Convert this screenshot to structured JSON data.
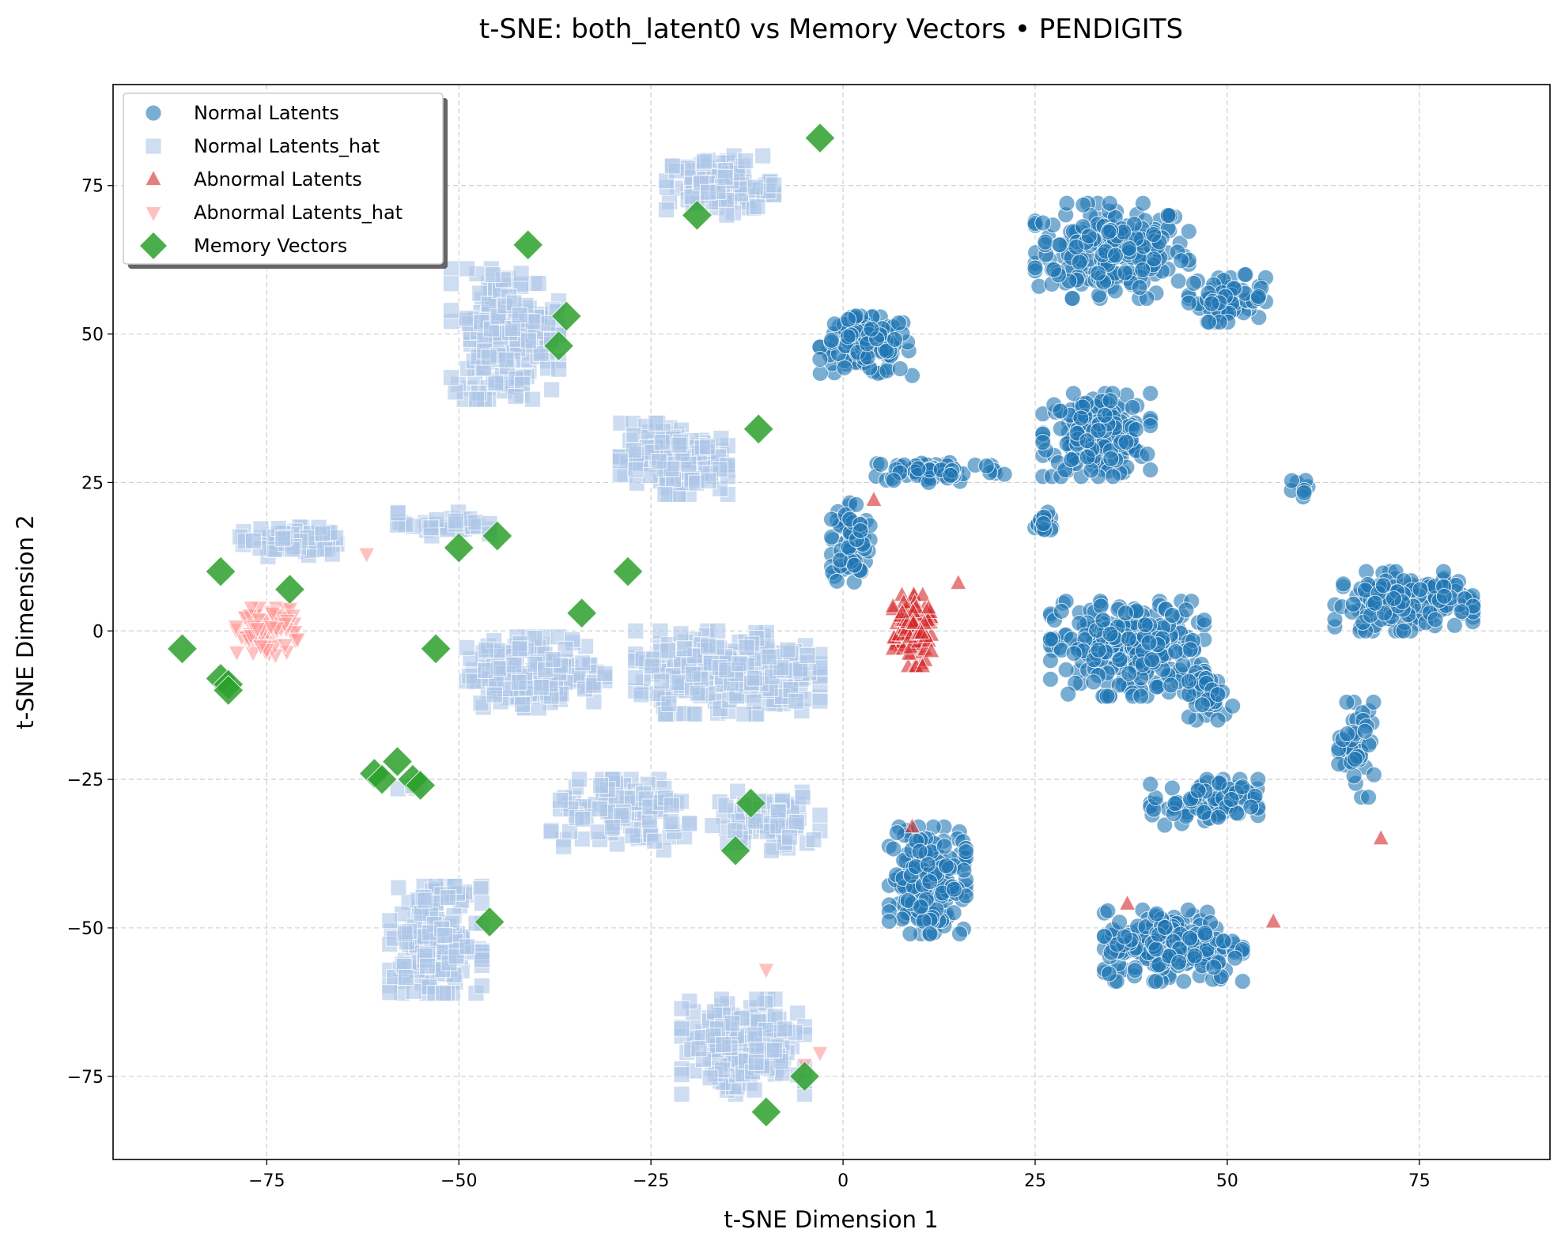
{
  "chart_data": {
    "type": "scatter",
    "title": "t-SNE: both_latent0 vs Memory Vectors • PENDIGITS",
    "xlabel": "t-SNE Dimension 1",
    "ylabel": "t-SNE Dimension 2",
    "xlim": [
      -95,
      92
    ],
    "ylim": [
      -89,
      92
    ],
    "xticks": [
      -75,
      -50,
      -25,
      0,
      25,
      50,
      75
    ],
    "yticks": [
      -75,
      -50,
      -25,
      0,
      25,
      50,
      75
    ],
    "xtick_labels": [
      "−75",
      "−50",
      "−25",
      "0",
      "25",
      "50",
      "75"
    ],
    "ytick_labels": [
      "−75",
      "−50",
      "−25",
      "0",
      "25",
      "50",
      "75"
    ],
    "grid": true,
    "legend_position": "top-left",
    "series": [
      {
        "name": "Normal Latents",
        "marker": "circle",
        "color": "#1f77b4",
        "clusters": [
          {
            "cx": 35,
            "cy": 64,
            "rx": 10,
            "ry": 8,
            "n": 220
          },
          {
            "cx": 50,
            "cy": 56,
            "rx": 5,
            "ry": 4,
            "n": 70
          },
          {
            "cx": 3,
            "cy": 48,
            "rx": 6,
            "ry": 5,
            "n": 130
          },
          {
            "cx": 33,
            "cy": 33,
            "rx": 7,
            "ry": 7,
            "n": 180
          },
          {
            "cx": 12,
            "cy": 27,
            "rx": 9,
            "ry": 2,
            "n": 70
          },
          {
            "cx": 1,
            "cy": 15,
            "rx": 2.5,
            "ry": 7,
            "n": 70
          },
          {
            "cx": 26,
            "cy": 18,
            "rx": 2,
            "ry": 2,
            "n": 18
          },
          {
            "cx": 59,
            "cy": 24,
            "rx": 1.5,
            "ry": 1.5,
            "n": 8
          },
          {
            "cx": 37,
            "cy": -3,
            "rx": 10,
            "ry": 8,
            "n": 280
          },
          {
            "cx": 48,
            "cy": -11,
            "rx": 3,
            "ry": 4,
            "n": 40
          },
          {
            "cx": 73,
            "cy": 5,
            "rx": 9,
            "ry": 5,
            "n": 160
          },
          {
            "cx": 67,
            "cy": -20,
            "rx": 2.5,
            "ry": 8,
            "n": 45
          },
          {
            "cx": 11,
            "cy": -42,
            "rx": 5,
            "ry": 9,
            "n": 200
          },
          {
            "cx": 47,
            "cy": -29,
            "rx": 7,
            "ry": 4,
            "n": 90
          },
          {
            "cx": 43,
            "cy": -53,
            "rx": 9,
            "ry": 6,
            "n": 220
          }
        ]
      },
      {
        "name": "Normal Latents_hat",
        "marker": "square",
        "color": "#aec7e8",
        "clusters": [
          {
            "cx": -44,
            "cy": 50,
            "rx": 7,
            "ry": 11,
            "n": 190
          },
          {
            "cx": -16,
            "cy": 75,
            "rx": 7,
            "ry": 5,
            "n": 110
          },
          {
            "cx": -22,
            "cy": 29,
            "rx": 7,
            "ry": 6,
            "n": 150
          },
          {
            "cx": -72,
            "cy": 15,
            "rx": 7,
            "ry": 2.5,
            "n": 70
          },
          {
            "cx": -52,
            "cy": 18,
            "rx": 6,
            "ry": 2,
            "n": 35
          },
          {
            "cx": -40,
            "cy": -7,
            "rx": 9,
            "ry": 6,
            "n": 180
          },
          {
            "cx": -15,
            "cy": -7,
            "rx": 12,
            "ry": 7,
            "n": 260
          },
          {
            "cx": -28,
            "cy": -31,
            "rx": 10,
            "ry": 6,
            "n": 110
          },
          {
            "cx": -10,
            "cy": -32,
            "rx": 7,
            "ry": 5,
            "n": 80
          },
          {
            "cx": -53,
            "cy": -52,
            "rx": 6,
            "ry": 9,
            "n": 180
          },
          {
            "cx": -13,
            "cy": -70,
            "rx": 8,
            "ry": 8,
            "n": 190
          },
          {
            "cx": -56,
            "cy": -26,
            "rx": 2,
            "ry": 2,
            "n": 6
          }
        ]
      },
      {
        "name": "Abnormal Latents",
        "marker": "triangle-up",
        "color": "#d62728",
        "clusters": [
          {
            "cx": 9,
            "cy": 0,
            "rx": 2.5,
            "ry": 6,
            "n": 120
          }
        ],
        "points": [
          [
            4,
            22
          ],
          [
            15,
            8
          ],
          [
            9,
            -33
          ],
          [
            37,
            -46
          ],
          [
            56,
            -49
          ],
          [
            70,
            -35
          ]
        ]
      },
      {
        "name": "Abnormal Latents_hat",
        "marker": "triangle-down",
        "color": "#ff9896",
        "clusters": [
          {
            "cx": -75,
            "cy": 0,
            "rx": 4,
            "ry": 4,
            "n": 80
          }
        ],
        "points": [
          [
            -62,
            13
          ],
          [
            -10,
            -57
          ],
          [
            -5,
            -73
          ],
          [
            -3,
            -71
          ],
          [
            -77,
            4
          ]
        ]
      },
      {
        "name": "Memory Vectors",
        "marker": "diamond",
        "color": "#2ca02c",
        "points": [
          [
            -3,
            83
          ],
          [
            -19,
            70
          ],
          [
            -41,
            65
          ],
          [
            -36,
            53
          ],
          [
            -37,
            48
          ],
          [
            -11,
            34
          ],
          [
            -81,
            10
          ],
          [
            -72,
            7
          ],
          [
            -50,
            14
          ],
          [
            -45,
            16
          ],
          [
            -28,
            10
          ],
          [
            -34,
            3
          ],
          [
            -86,
            -3
          ],
          [
            -53,
            -3
          ],
          [
            -81,
            -8
          ],
          [
            -80,
            -9
          ],
          [
            -80,
            -10
          ],
          [
            -61,
            -24
          ],
          [
            -60,
            -25
          ],
          [
            -58,
            -22
          ],
          [
            -56,
            -25
          ],
          [
            -55,
            -26
          ],
          [
            -12,
            -29
          ],
          [
            -14,
            -37
          ],
          [
            -46,
            -49
          ],
          [
            -5,
            -75
          ],
          [
            -10,
            -81
          ]
        ]
      }
    ]
  }
}
